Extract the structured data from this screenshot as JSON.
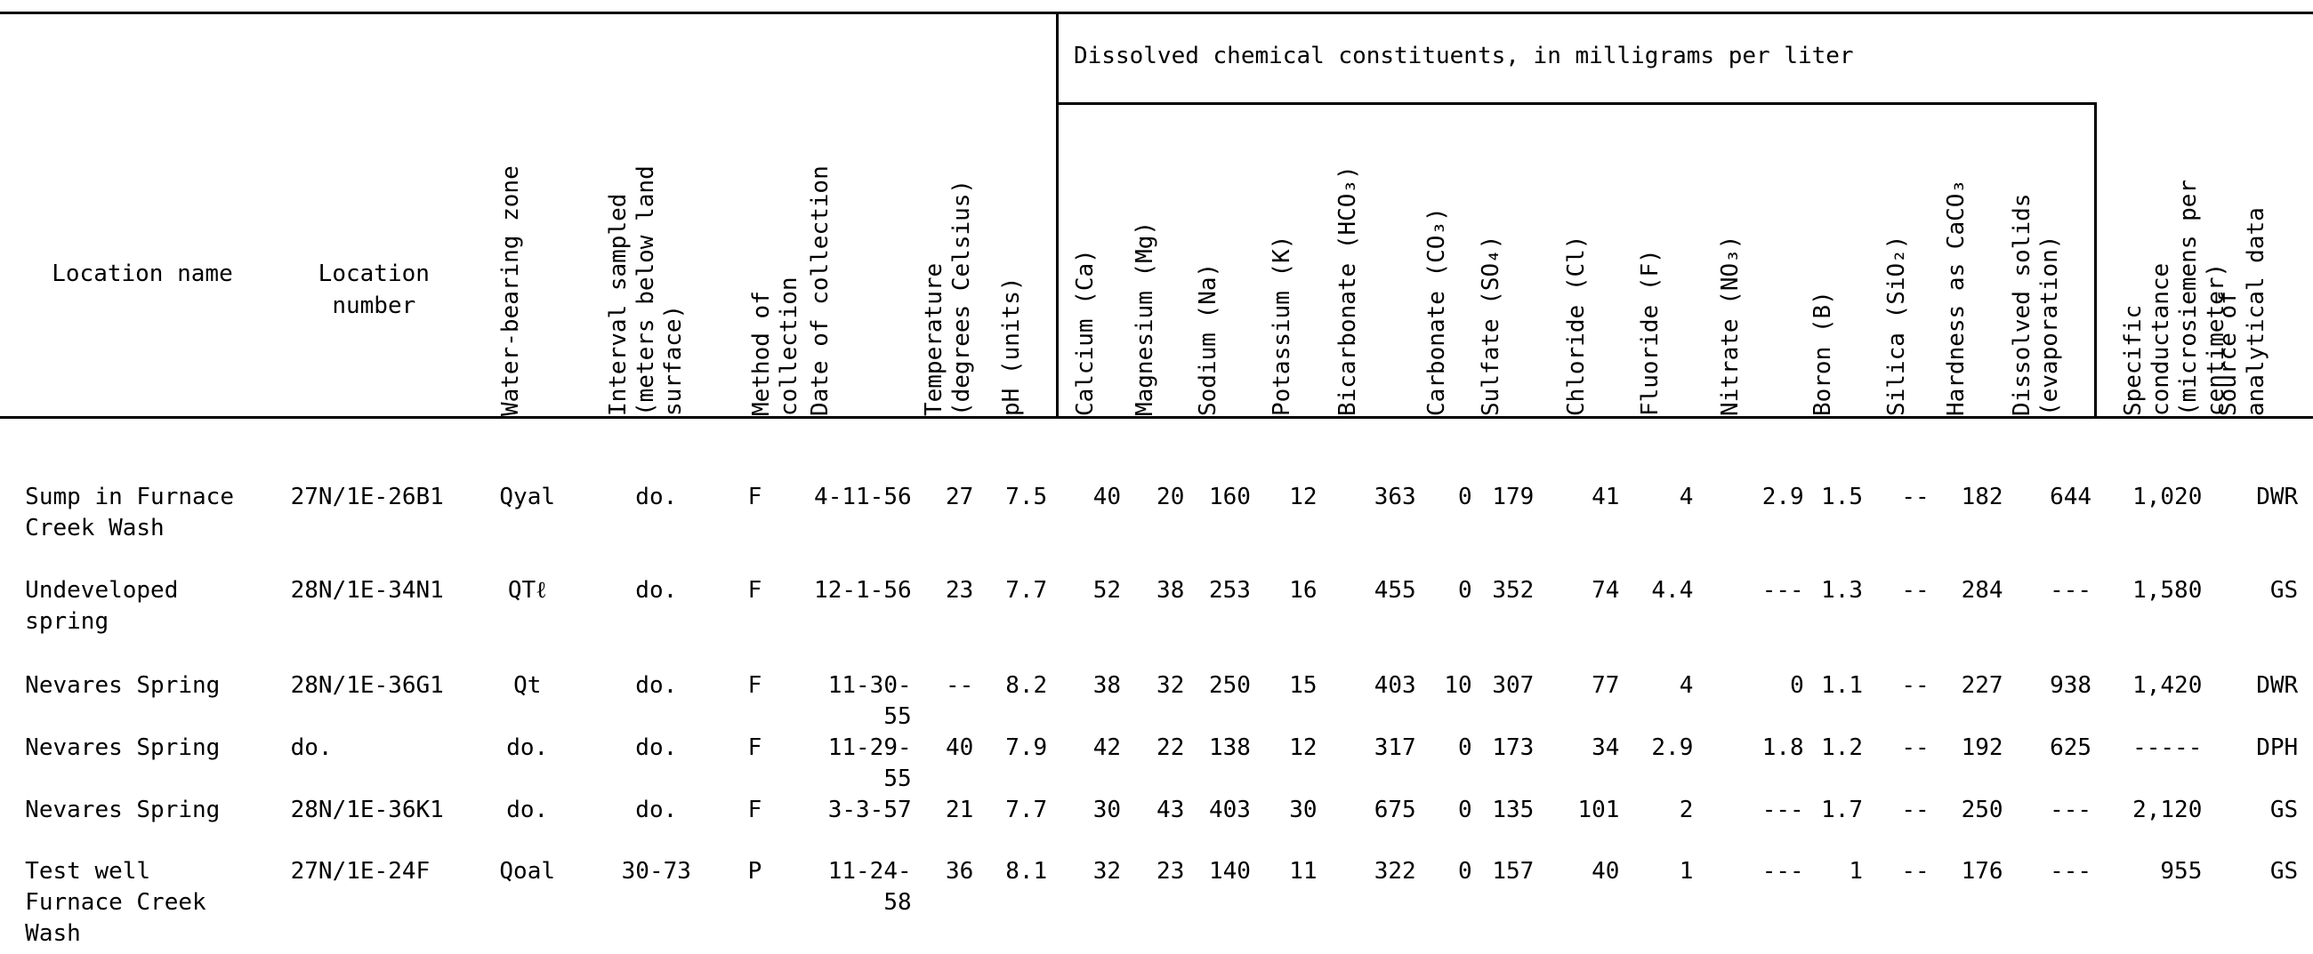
{
  "table": {
    "group_header": "Dissolved chemical constituents, in milligrams per liter",
    "columns": [
      "Location name",
      "Location number",
      "Water-bearing zone",
      "Interval sampled (meters below land surface)",
      "Method of collection",
      "Date of collection",
      "Temperature (degrees Celsius)",
      "pH (units)",
      "Calcium (Ca)",
      "Magnesium (Mg)",
      "Sodium (Na)",
      "Potassium (K)",
      "Bicarbonate (HCO₃)",
      "Carbonate (CO₃)",
      "Sulfate (SO₄)",
      "Chloride (Cl)",
      "Fluoride (F)",
      "Nitrate (NO₃)",
      "Boron (B)",
      "Silica (SiO₂)",
      "Hardness as CaCO₃",
      "Dissolved solids (evaporation)",
      "Specific conductance (microsiemens per centimeter)",
      "Source of analytical data"
    ],
    "rows": [
      [
        "Sump in Furnace Creek Wash",
        "27N/1E-26B1",
        "Qyal",
        "do.",
        "F",
        "4-11-56",
        "27",
        "7.5",
        "40",
        "20",
        "160",
        "12",
        "363",
        "0",
        "179",
        "41",
        "4",
        "2.9",
        "1.5",
        "--",
        "182",
        "644",
        "1,020",
        "DWR"
      ],
      [
        "Undeveloped spring",
        "28N/1E-34N1",
        "QTℓ",
        "do.",
        "F",
        "12-1-56",
        "23",
        "7.7",
        "52",
        "38",
        "253",
        "16",
        "455",
        "0",
        "352",
        "74",
        "4.4",
        "---",
        "1.3",
        "--",
        "284",
        "---",
        "1,580",
        "GS"
      ],
      [
        "Nevares Spring",
        "28N/1E-36G1",
        "Qt",
        "do.",
        "F",
        "11-30-55",
        "--",
        "8.2",
        "38",
        "32",
        "250",
        "15",
        "403",
        "10",
        "307",
        "77",
        "4",
        "0",
        "1.1",
        "--",
        "227",
        "938",
        "1,420",
        "DWR"
      ],
      [
        "Nevares Spring",
        "do.",
        "do.",
        "do.",
        "F",
        "11-29-55",
        "40",
        "7.9",
        "42",
        "22",
        "138",
        "12",
        "317",
        "0",
        "173",
        "34",
        "2.9",
        "1.8",
        "1.2",
        "--",
        "192",
        "625",
        "-----",
        "DPH"
      ],
      [
        "Nevares Spring",
        "28N/1E-36K1",
        "do.",
        "do.",
        "F",
        "3-3-57",
        "21",
        "7.7",
        "30",
        "43",
        "403",
        "30",
        "675",
        "0",
        "135",
        "101",
        "2",
        "---",
        "1.7",
        "--",
        "250",
        "---",
        "2,120",
        "GS"
      ],
      [
        "Test well Furnace Creek Wash",
        "27N/1E-24F",
        "Qoal",
        "30-73",
        "P",
        "11-24-58",
        "36",
        "8.1",
        "32",
        "23",
        "140",
        "11",
        "322",
        "0",
        "157",
        "40",
        "1",
        "---",
        "1",
        "--",
        "176",
        "---",
        "955",
        "GS"
      ]
    ]
  }
}
